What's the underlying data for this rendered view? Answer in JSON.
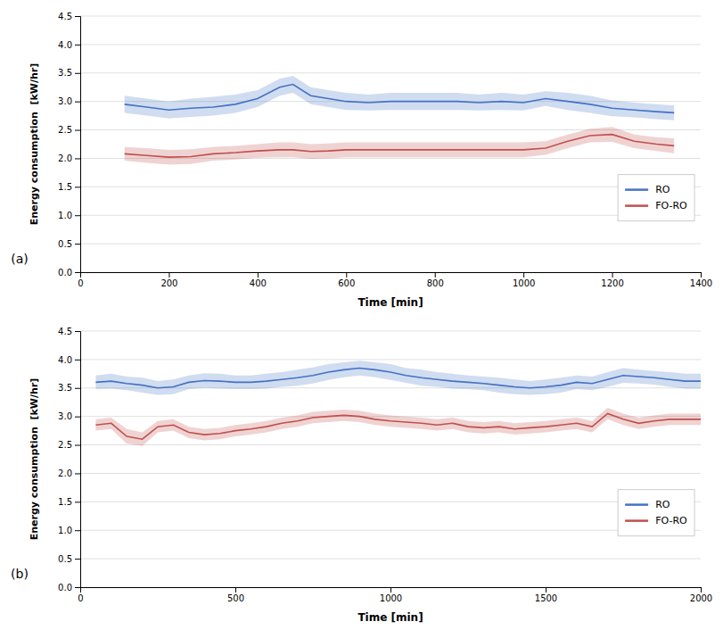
{
  "chart_data": [
    {
      "type": "line",
      "title": "(a)",
      "x_label": "Time [min]",
      "y_label": "Energy consumption  [kW/hr]",
      "xlim": [
        0,
        1400
      ],
      "ylim": [
        0,
        4.5
      ],
      "xticks": [
        0,
        200,
        400,
        600,
        800,
        1000,
        1200,
        1400
      ],
      "yticks": [
        {
          "value": 0,
          "label": "0.0"
        },
        0.5,
        {
          "value": 1.0,
          "label": "1.0"
        },
        1.5,
        {
          "value": 2.0,
          "label": "2.0"
        },
        2.5,
        {
          "value": 3.0,
          "label": "3.0"
        },
        3.5,
        {
          "value": 4.0,
          "label": "4.0"
        },
        4.5
      ],
      "grid": true,
      "legend": "lower right",
      "x": [
        100,
        150,
        200,
        250,
        300,
        350,
        400,
        450,
        480,
        520,
        560,
        600,
        650,
        700,
        750,
        800,
        850,
        900,
        950,
        1000,
        1050,
        1100,
        1150,
        1200,
        1250,
        1300,
        1340
      ],
      "series": [
        {
          "name": "RO",
          "color": "#4472C4",
          "values": [
            2.95,
            2.9,
            2.85,
            2.88,
            2.9,
            2.95,
            3.05,
            3.25,
            3.3,
            3.1,
            3.05,
            3.0,
            2.98,
            3.0,
            3.0,
            3.0,
            3.0,
            2.98,
            3.0,
            2.98,
            3.05,
            3.0,
            2.95,
            2.88,
            2.85,
            2.82,
            2.8
          ],
          "upper": [
            3.1,
            3.05,
            3.0,
            3.05,
            3.08,
            3.12,
            3.2,
            3.4,
            3.45,
            3.25,
            3.2,
            3.15,
            3.12,
            3.15,
            3.15,
            3.15,
            3.15,
            3.12,
            3.15,
            3.12,
            3.18,
            3.15,
            3.1,
            3.02,
            2.98,
            2.95,
            2.93
          ],
          "lower": [
            2.8,
            2.75,
            2.7,
            2.73,
            2.75,
            2.8,
            2.9,
            3.1,
            3.15,
            2.95,
            2.9,
            2.85,
            2.84,
            2.85,
            2.85,
            2.85,
            2.85,
            2.84,
            2.85,
            2.84,
            2.92,
            2.85,
            2.8,
            2.74,
            2.72,
            2.69,
            2.67
          ]
        },
        {
          "name": "FO-RO",
          "color": "#C0504D",
          "values": [
            2.08,
            2.05,
            2.02,
            2.03,
            2.08,
            2.1,
            2.13,
            2.15,
            2.15,
            2.12,
            2.13,
            2.15,
            2.15,
            2.15,
            2.15,
            2.15,
            2.15,
            2.15,
            2.15,
            2.15,
            2.18,
            2.3,
            2.4,
            2.42,
            2.3,
            2.25,
            2.22
          ],
          "upper": [
            2.2,
            2.18,
            2.15,
            2.16,
            2.2,
            2.22,
            2.25,
            2.28,
            2.28,
            2.25,
            2.26,
            2.28,
            2.28,
            2.28,
            2.28,
            2.28,
            2.28,
            2.28,
            2.28,
            2.28,
            2.3,
            2.42,
            2.52,
            2.55,
            2.42,
            2.37,
            2.35
          ],
          "lower": [
            1.96,
            1.92,
            1.89,
            1.9,
            1.96,
            1.98,
            2.01,
            2.02,
            2.02,
            1.99,
            2.0,
            2.02,
            2.02,
            2.02,
            2.02,
            2.02,
            2.02,
            2.02,
            2.02,
            2.02,
            2.06,
            2.18,
            2.28,
            2.29,
            2.18,
            2.13,
            2.09
          ]
        }
      ]
    },
    {
      "type": "line",
      "title": "(b)",
      "x_label": "Time [min]",
      "y_label": "Energy consumption  [kW/hr]",
      "xlim": [
        0,
        2000
      ],
      "ylim": [
        0,
        4.5
      ],
      "xticks": [
        0,
        500,
        1000,
        1500,
        2000
      ],
      "yticks": [
        {
          "value": 0,
          "label": "0.0"
        },
        0.5,
        {
          "value": 1.0,
          "label": "1.0"
        },
        1.5,
        {
          "value": 2.0,
          "label": "2.0"
        },
        2.5,
        {
          "value": 3.0,
          "label": "3.0"
        },
        3.5,
        {
          "value": 4.0,
          "label": "4.0"
        },
        4.5
      ],
      "grid": true,
      "legend": "lower right",
      "x": [
        50,
        100,
        150,
        200,
        250,
        300,
        350,
        400,
        450,
        500,
        550,
        600,
        650,
        700,
        750,
        800,
        850,
        900,
        950,
        1000,
        1050,
        1100,
        1150,
        1200,
        1250,
        1300,
        1350,
        1400,
        1450,
        1500,
        1550,
        1600,
        1650,
        1700,
        1750,
        1800,
        1850,
        1900,
        1950,
        2000
      ],
      "series": [
        {
          "name": "RO",
          "color": "#4472C4",
          "values": [
            3.6,
            3.62,
            3.58,
            3.55,
            3.5,
            3.52,
            3.6,
            3.63,
            3.62,
            3.6,
            3.6,
            3.62,
            3.65,
            3.68,
            3.72,
            3.78,
            3.82,
            3.85,
            3.82,
            3.78,
            3.72,
            3.68,
            3.65,
            3.62,
            3.6,
            3.58,
            3.55,
            3.52,
            3.5,
            3.52,
            3.55,
            3.6,
            3.58,
            3.65,
            3.72,
            3.7,
            3.68,
            3.65,
            3.62,
            3.62
          ],
          "upper": [
            3.72,
            3.75,
            3.7,
            3.68,
            3.62,
            3.65,
            3.72,
            3.76,
            3.75,
            3.72,
            3.72,
            3.75,
            3.78,
            3.82,
            3.86,
            3.92,
            3.95,
            3.98,
            3.95,
            3.92,
            3.85,
            3.82,
            3.78,
            3.75,
            3.72,
            3.7,
            3.68,
            3.65,
            3.62,
            3.65,
            3.68,
            3.72,
            3.7,
            3.78,
            3.85,
            3.82,
            3.8,
            3.78,
            3.75,
            3.75
          ],
          "lower": [
            3.48,
            3.49,
            3.46,
            3.42,
            3.38,
            3.39,
            3.48,
            3.5,
            3.49,
            3.48,
            3.48,
            3.49,
            3.52,
            3.54,
            3.58,
            3.64,
            3.69,
            3.72,
            3.69,
            3.64,
            3.59,
            3.54,
            3.52,
            3.49,
            3.48,
            3.46,
            3.42,
            3.39,
            3.38,
            3.39,
            3.42,
            3.48,
            3.46,
            3.52,
            3.59,
            3.58,
            3.56,
            3.52,
            3.49,
            3.49
          ]
        },
        {
          "name": "FO-RO",
          "color": "#C0504D",
          "values": [
            2.85,
            2.88,
            2.65,
            2.6,
            2.82,
            2.85,
            2.72,
            2.68,
            2.7,
            2.75,
            2.78,
            2.82,
            2.88,
            2.92,
            2.98,
            3.0,
            3.02,
            3.0,
            2.95,
            2.92,
            2.9,
            2.88,
            2.85,
            2.88,
            2.82,
            2.8,
            2.82,
            2.78,
            2.8,
            2.82,
            2.85,
            2.88,
            2.82,
            3.05,
            2.95,
            2.88,
            2.92,
            2.95,
            2.95,
            2.95
          ],
          "upper": [
            2.95,
            2.98,
            2.78,
            2.72,
            2.92,
            2.95,
            2.82,
            2.78,
            2.8,
            2.85,
            2.88,
            2.92,
            2.98,
            3.02,
            3.08,
            3.1,
            3.12,
            3.1,
            3.05,
            3.02,
            3.0,
            2.98,
            2.95,
            2.98,
            2.92,
            2.9,
            2.92,
            2.88,
            2.9,
            2.92,
            2.95,
            2.98,
            2.92,
            3.15,
            3.05,
            2.98,
            3.02,
            3.05,
            3.05,
            3.05
          ],
          "lower": [
            2.75,
            2.78,
            2.52,
            2.48,
            2.72,
            2.75,
            2.62,
            2.58,
            2.6,
            2.65,
            2.68,
            2.72,
            2.78,
            2.82,
            2.88,
            2.9,
            2.92,
            2.9,
            2.85,
            2.82,
            2.8,
            2.78,
            2.75,
            2.78,
            2.72,
            2.7,
            2.72,
            2.68,
            2.7,
            2.72,
            2.75,
            2.78,
            2.72,
            2.95,
            2.85,
            2.78,
            2.82,
            2.85,
            2.85,
            2.85
          ]
        }
      ]
    }
  ]
}
